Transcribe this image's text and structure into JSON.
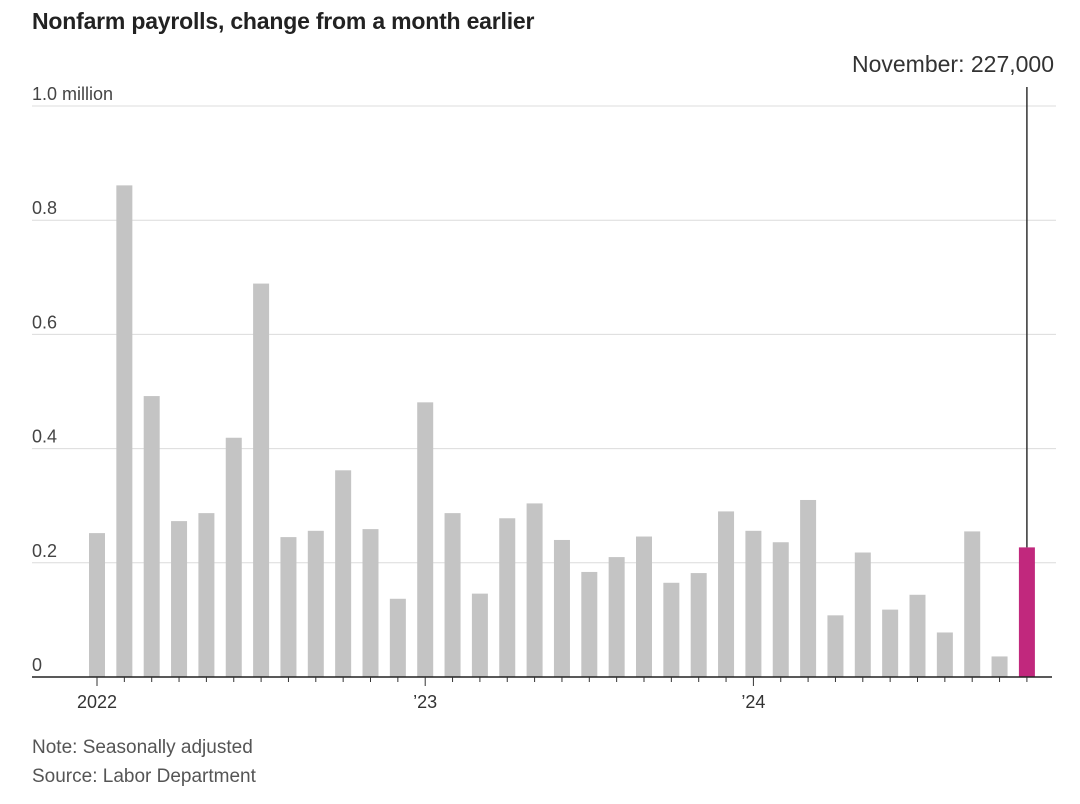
{
  "chart_data": {
    "type": "bar",
    "title": "Nonfarm payrolls, change from a month earlier",
    "y_unit_label": "1.0 million",
    "ylim": [
      0,
      1.0
    ],
    "yticks": [
      {
        "value": 0,
        "label": "0"
      },
      {
        "value": 0.2,
        "label": "0.2"
      },
      {
        "value": 0.4,
        "label": "0.4"
      },
      {
        "value": 0.6,
        "label": "0.6"
      },
      {
        "value": 0.8,
        "label": "0.8"
      },
      {
        "value": 1.0,
        "label": "1.0 million"
      }
    ],
    "xticks": [
      {
        "index": 0,
        "label": "2022"
      },
      {
        "index": 12,
        "label": "’23"
      },
      {
        "index": 24,
        "label": "’24"
      }
    ],
    "grid": true,
    "categories": [
      "Jan 2022",
      "Feb 2022",
      "Mar 2022",
      "Apr 2022",
      "May 2022",
      "Jun 2022",
      "Jul 2022",
      "Aug 2022",
      "Sep 2022",
      "Oct 2022",
      "Nov 2022",
      "Dec 2022",
      "Jan 2023",
      "Feb 2023",
      "Mar 2023",
      "Apr 2023",
      "May 2023",
      "Jun 2023",
      "Jul 2023",
      "Aug 2023",
      "Sep 2023",
      "Oct 2023",
      "Nov 2023",
      "Dec 2023",
      "Jan 2024",
      "Feb 2024",
      "Mar 2024",
      "Apr 2024",
      "May 2024",
      "Jun 2024",
      "Jul 2024",
      "Aug 2024",
      "Sep 2024",
      "Oct 2024",
      "Nov 2024"
    ],
    "values": [
      0.252,
      0.861,
      0.492,
      0.273,
      0.287,
      0.419,
      0.689,
      0.245,
      0.256,
      0.362,
      0.259,
      0.137,
      0.481,
      0.287,
      0.146,
      0.278,
      0.304,
      0.24,
      0.184,
      0.21,
      0.246,
      0.165,
      0.182,
      0.29,
      0.256,
      0.236,
      0.31,
      0.108,
      0.218,
      0.118,
      0.144,
      0.078,
      0.255,
      0.036,
      0.227
    ],
    "bar_color": "#c4c4c4",
    "highlight_color": "#c1287d",
    "highlight_index": 34,
    "annotation": "November: 227,000"
  },
  "footer": {
    "note": "Note: Seasonally adjusted",
    "source": "Source: Labor Department"
  }
}
